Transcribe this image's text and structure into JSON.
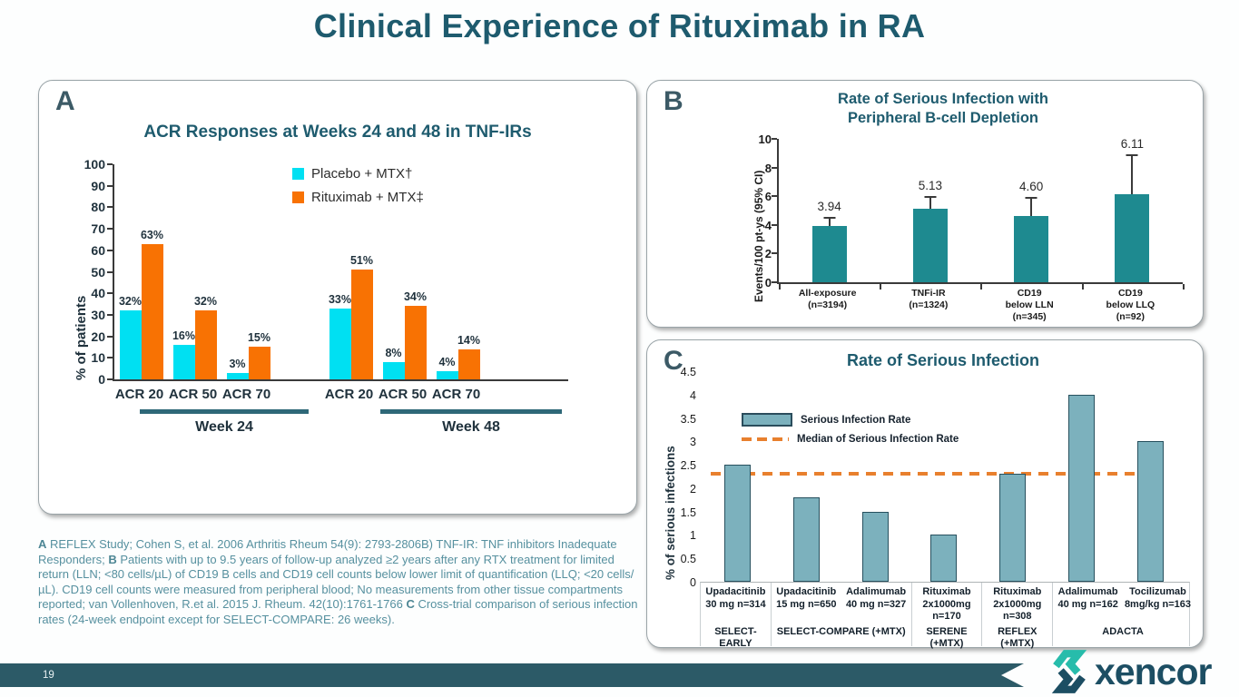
{
  "slide": {
    "title": "Clinical Experience of Rituximab in RA"
  },
  "panels": {
    "a": {
      "label": "A"
    },
    "b": {
      "label": "B"
    },
    "c": {
      "label": "C"
    }
  },
  "chart_data": [
    {
      "id": "A",
      "type": "bar",
      "title": "ACR Responses at Weeks 24 and 48 in TNF-IRs",
      "ylabel": "% of patients",
      "ylim": [
        0,
        100
      ],
      "yticks": [
        0,
        10,
        20,
        30,
        40,
        50,
        60,
        70,
        80,
        90,
        100
      ],
      "groups": [
        "Week 24",
        "Week 48"
      ],
      "categories": [
        "ACR 20",
        "ACR 50",
        "ACR 70",
        "ACR 20",
        "ACR 50",
        "ACR 70"
      ],
      "series": [
        {
          "name": "Placebo + MTX†",
          "color": "#00e0f2",
          "values": [
            32,
            16,
            3,
            33,
            8,
            4
          ],
          "labels": [
            "32%",
            "16%",
            "3%",
            "33%",
            "8%",
            "4%"
          ]
        },
        {
          "name": "Rituximab + MTX‡",
          "color": "#f87203",
          "values": [
            63,
            32,
            15,
            51,
            34,
            14
          ],
          "labels": [
            "63%",
            "32%",
            "15%",
            "51%",
            "34%",
            "14%"
          ]
        }
      ],
      "legend_position": "top-left"
    },
    {
      "id": "B",
      "type": "bar",
      "title": "Rate of Serious Infection with Peripheral B-cell Depletion",
      "title_lines": [
        "Rate of Serious Infection with",
        "Peripheral B-cell Depletion"
      ],
      "ylabel": "Events/100 pt-ys (95% CI)",
      "ylim": [
        0,
        10
      ],
      "yticks": [
        0,
        2,
        4,
        6,
        8,
        10
      ],
      "categories": [
        [
          "All-exposure",
          "(n=3194)"
        ],
        [
          "TNFi-IR",
          "(n=1324)"
        ],
        [
          "CD19",
          "below LLN",
          "(n=345)"
        ],
        [
          "CD19",
          "below LLQ",
          "(n=92)"
        ]
      ],
      "values": [
        3.94,
        5.13,
        4.6,
        6.11
      ],
      "value_labels": [
        "3.94",
        "5.13",
        "4.60",
        "6.11"
      ],
      "error_upper": [
        4.4,
        5.9,
        5.8,
        8.8
      ],
      "bar_color": "#1e8a90"
    },
    {
      "id": "C",
      "type": "bar",
      "title": "Rate of Serious Infection",
      "ylabel": "% of serious infections",
      "ylim": [
        0,
        4.5
      ],
      "yticks": [
        0,
        0.5,
        1,
        1.5,
        2,
        2.5,
        3,
        3.5,
        4,
        4.5
      ],
      "values": [
        2.5,
        1.8,
        1.5,
        1.0,
        2.3,
        4.0,
        3.0
      ],
      "median": 2.3,
      "bar_color": "#7cb1bd",
      "median_color": "#e8802e",
      "legend": [
        "Serious Infection Rate",
        "Median of Serious Infection Rate"
      ],
      "drugs": [
        [
          "Upadacitinib",
          "30 mg n=314"
        ],
        [
          "Upadacitinib",
          "15 mg n=650"
        ],
        [
          "Adalimumab",
          "40 mg n=327"
        ],
        [
          "Rituximab",
          "2x1000mg",
          "n=170"
        ],
        [
          "Rituximab",
          "2x1000mg",
          "n=308"
        ],
        [
          "Adalimumab",
          "40 mg n=162"
        ],
        [
          "Tocilizumab",
          "8mg/kg n=163"
        ]
      ],
      "studies": [
        {
          "lines": [
            "SELECT-EARLY"
          ],
          "span": 1
        },
        {
          "lines": [
            "SELECT-COMPARE (+MTX)"
          ],
          "span": 2
        },
        {
          "lines": [
            "SERENE",
            "(+MTX)"
          ],
          "span": 1
        },
        {
          "lines": [
            "REFLEX",
            "(+MTX)"
          ],
          "span": 1
        },
        {
          "lines": [
            "ADACTA"
          ],
          "span": 2
        }
      ]
    }
  ],
  "footnote": {
    "segments": [
      {
        "b": "A"
      },
      {
        "t": " REFLEX Study; Cohen S, et al. 2006  Arthritis Rheum 54(9): 2793-2806B) TNF-IR: TNF inhibitors Inadequate Responders; "
      },
      {
        "b": "B"
      },
      {
        "t": " Patients with up to 9.5 years of follow-up analyzed ≥2 years after any RTX treatment for limited return (LLN; <80 cells/µL) of CD19 B cells and CD19 cell counts below lower limit of quantification (LLQ; <20 cells/µL). CD19 cell counts were measured from peripheral blood; No measurements from other tissue compartments reported; van Vollenhoven, R.et al. 2015 J. Rheum. 42(10):1761-1766  "
      },
      {
        "b": "C"
      },
      {
        "t": " Cross-trial comparison of serious infection rates (24-week endpoint except for SELECT-COMPARE: 26 weeks)."
      }
    ]
  },
  "footer": {
    "page_number": "19",
    "logo_text": "xencor"
  },
  "colors": {
    "title_teal": "#1e5b6e",
    "placebo_cyan": "#00e0f2",
    "rituximab_orange": "#f87203",
    "panel_b_bar": "#1e8a90",
    "panel_c_bar": "#7cb1bd",
    "median_orange": "#e8802e",
    "ribbon_teal": "#2c5a67",
    "logo_bright": "#27bcab",
    "logo_dark": "#1c4e63"
  }
}
